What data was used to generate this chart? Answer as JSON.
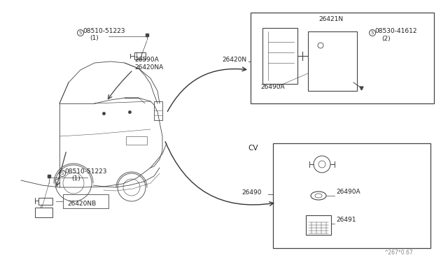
{
  "bg_color": "#ffffff",
  "fig_width": 6.4,
  "fig_height": 3.72,
  "watermark": "^267*0.67",
  "labels": {
    "part_08510_51223_top": "08510-51223",
    "part_08510_51223_top_sub": "(1)",
    "part_26590A": "26590A",
    "part_26420NA": "26420NA",
    "part_26420N": "26420N",
    "part_26421N": "26421N",
    "part_08530_41612": "08530-41612",
    "part_08530_41612_sub": "(2)",
    "part_26490A_box": "26490A",
    "part_26420NB": "26420NB",
    "part_08510_51223_bot": "08510-51223",
    "part_08510_51223_bot_sub": "(1)",
    "cv_label": "CV",
    "part_26490": "26490",
    "part_26490A_cv": "26490A",
    "part_26491": "26491"
  },
  "car": {
    "color": "#444444",
    "lw": 0.6
  }
}
